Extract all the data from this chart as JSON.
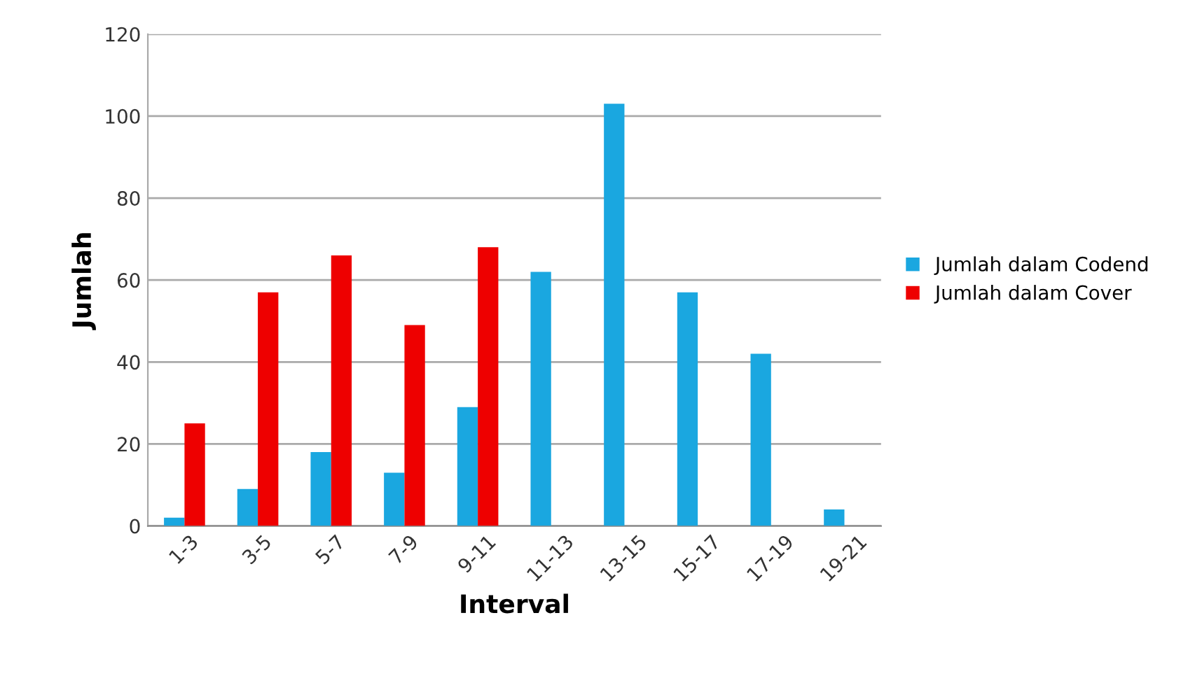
{
  "chart_data": {
    "type": "bar",
    "xlabel": "Interval",
    "ylabel": "Jumlah",
    "categories": [
      "1-3",
      "3-5",
      "5-7",
      "7-9",
      "9-11",
      "11-13",
      "13-15",
      "15-17",
      "17-19",
      "19-21"
    ],
    "series": [
      {
        "name": "Jumlah dalam Codend",
        "color": "#1aa7e0",
        "values": [
          2,
          9,
          18,
          13,
          29,
          62,
          103,
          57,
          42,
          4
        ]
      },
      {
        "name": "Jumlah dalam Cover",
        "color": "#ee0000",
        "values": [
          25,
          57,
          66,
          49,
          68,
          null,
          null,
          null,
          null,
          null
        ]
      }
    ],
    "ylim": [
      0,
      120
    ],
    "yticks": [
      0,
      20,
      40,
      60,
      80,
      100,
      120
    ],
    "grid": "y",
    "legend": "right"
  }
}
